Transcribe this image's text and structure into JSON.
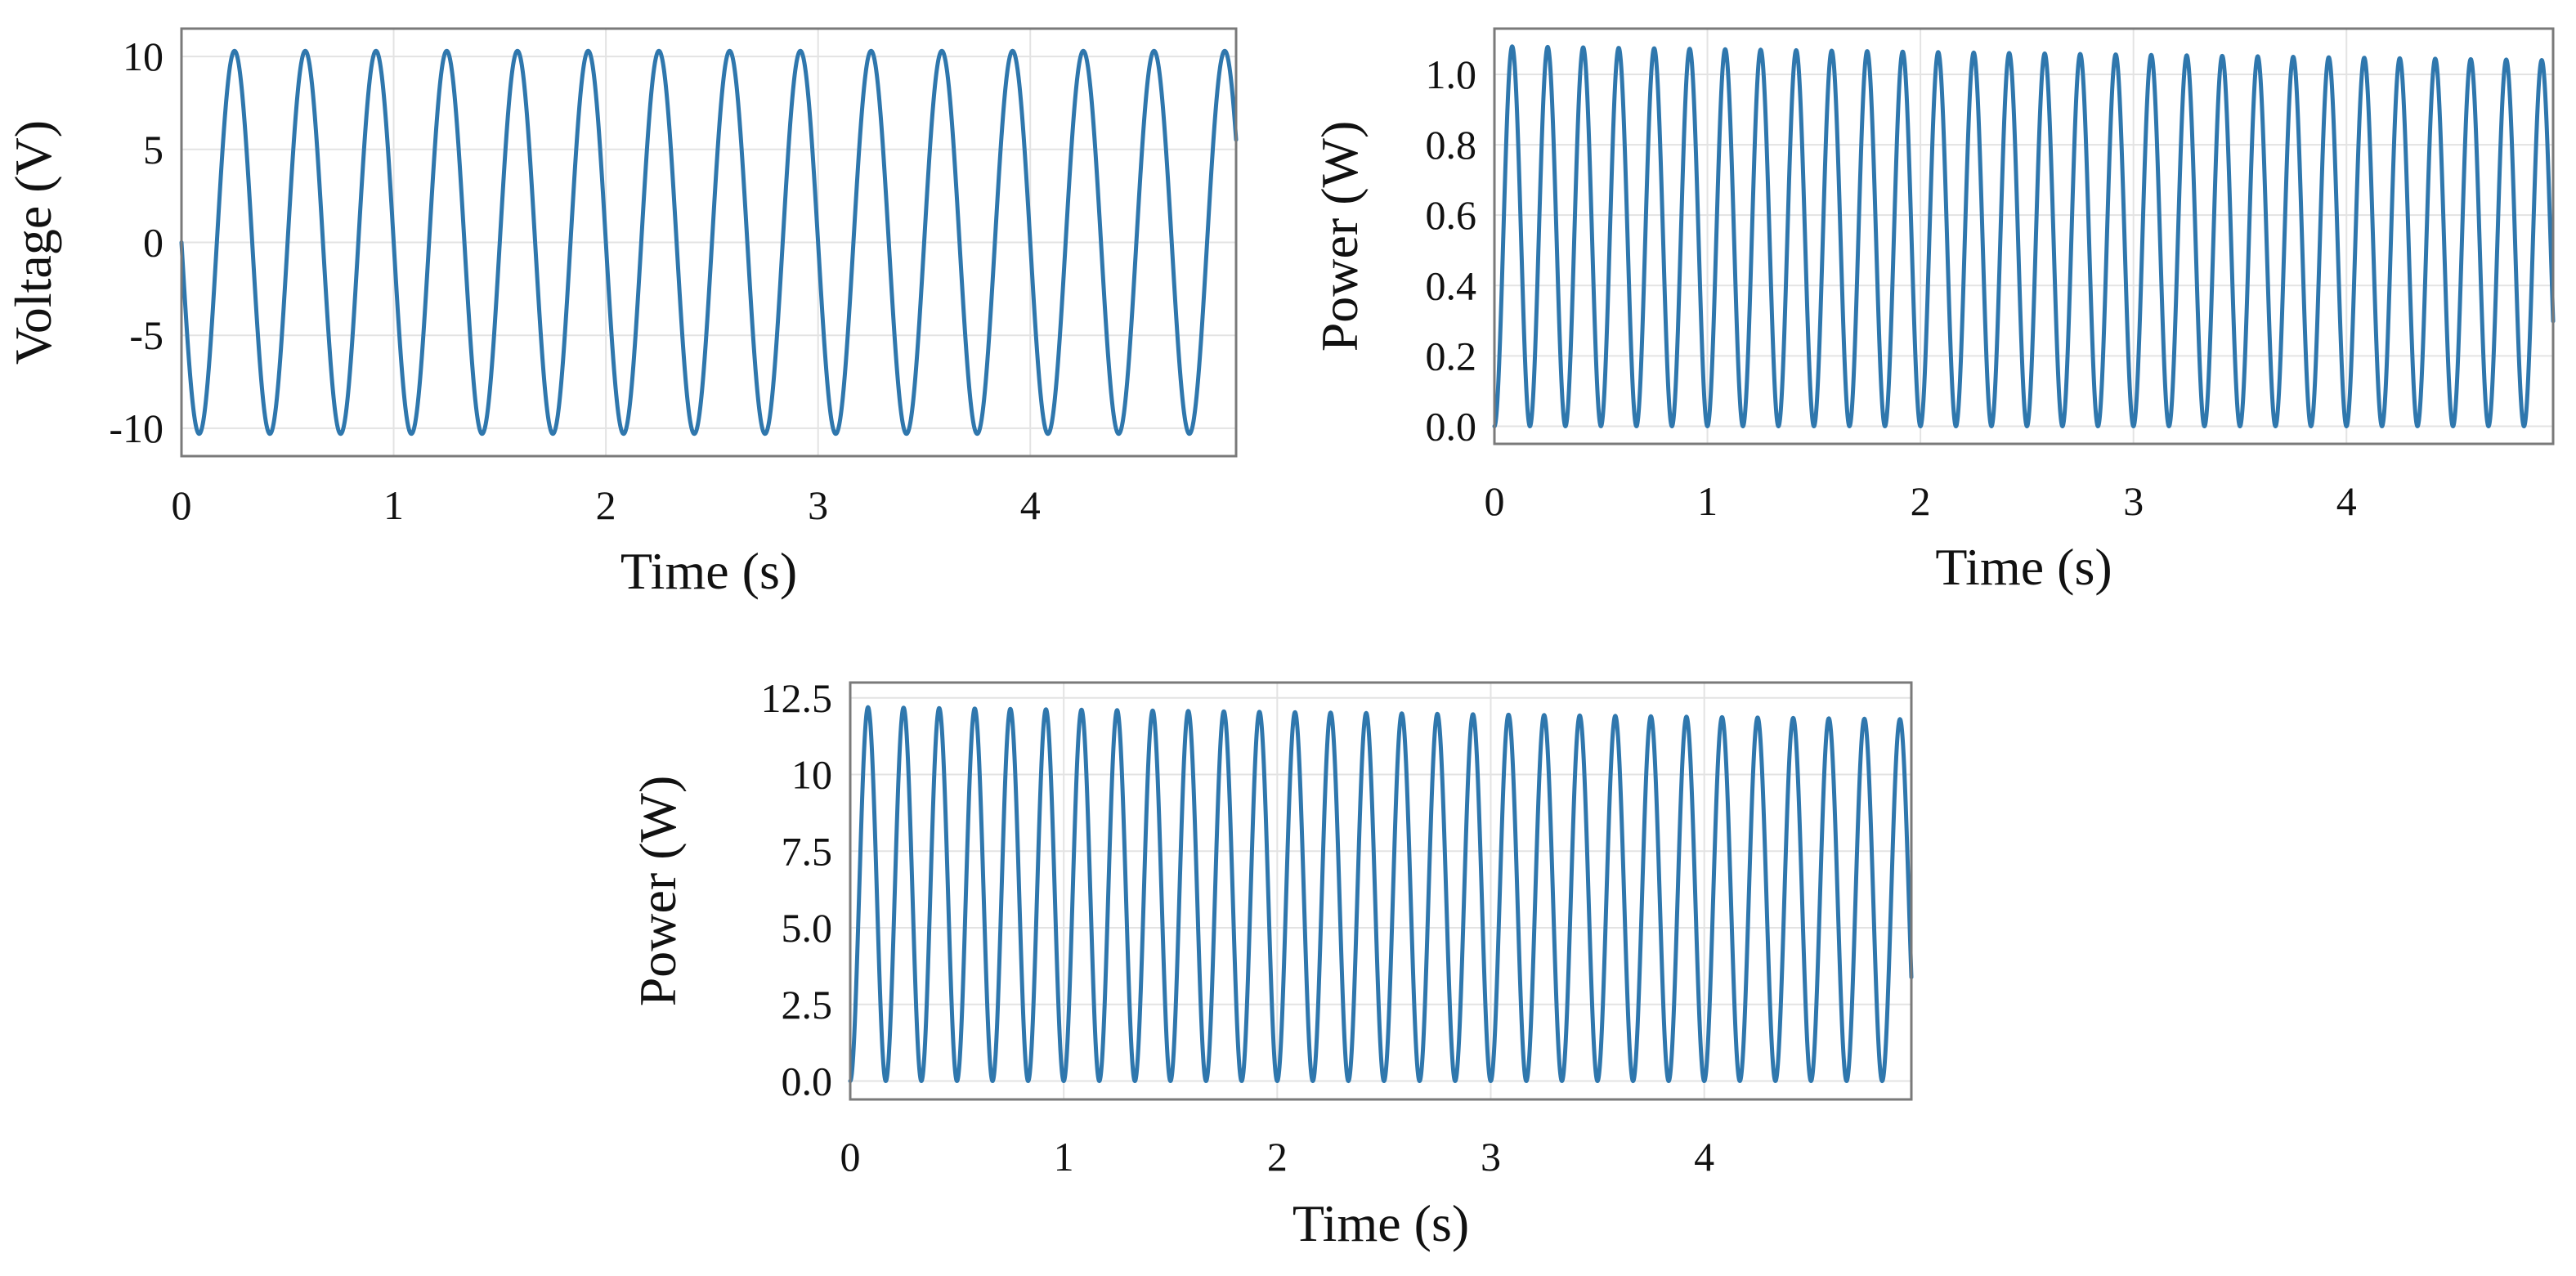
{
  "figure": {
    "description_none": ""
  },
  "colors": {
    "series": "#2f77ad",
    "frame": "#7a7a7a",
    "grid": "#e3e3e3",
    "text": "#111111"
  },
  "chart_data": [
    {
      "id": "voltage",
      "type": "line",
      "title": "",
      "xlabel": "Time (s)",
      "ylabel": "Voltage (V)",
      "xlim": [
        0,
        4.97
      ],
      "ylim": [
        -11.5,
        11.5
      ],
      "xticks": [
        0,
        1,
        2,
        3,
        4
      ],
      "xtick_labels": [
        "0",
        "1",
        "2",
        "3",
        "4"
      ],
      "yticks": [
        10,
        5,
        0,
        -5,
        -10
      ],
      "ytick_labels": [
        "10",
        "5",
        "0",
        "-5",
        "-10"
      ],
      "grid": true,
      "series": [
        {
          "name": "Voltage",
          "function": "sine",
          "amplitude": 10.3,
          "frequency_hz": 3.0,
          "phase_rad": 3.14159,
          "offset": 0
        }
      ]
    },
    {
      "id": "power_1",
      "type": "line",
      "title": "",
      "xlabel": "Time (s)",
      "ylabel": "Power (W)",
      "xlim": [
        0,
        4.97
      ],
      "ylim": [
        -0.05,
        1.13
      ],
      "xticks": [
        0,
        1,
        2,
        3,
        4
      ],
      "xtick_labels": [
        "0",
        "1",
        "2",
        "3",
        "4"
      ],
      "yticks": [
        1.0,
        0.8,
        0.6,
        0.4,
        0.2,
        0.0
      ],
      "ytick_labels": [
        "1.0",
        "0.8",
        "0.6",
        "0.4",
        "0.2",
        "0.0"
      ],
      "grid": true,
      "series": [
        {
          "name": "Power",
          "function": "sine_squared",
          "amplitude_start": 1.08,
          "amplitude_end": 1.04,
          "frequency_hz": 3.0,
          "phase_rad": 0
        }
      ]
    },
    {
      "id": "power_2",
      "type": "line",
      "title": "",
      "xlabel": "Time (s)",
      "ylabel": "Power (W)",
      "xlim": [
        0,
        4.97
      ],
      "ylim": [
        -0.6,
        13.0
      ],
      "xticks": [
        0,
        1,
        2,
        3,
        4
      ],
      "xtick_labels": [
        "0",
        "1",
        "2",
        "3",
        "4"
      ],
      "yticks": [
        12.5,
        10,
        7.5,
        5.0,
        2.5,
        0.0
      ],
      "ytick_labels": [
        "12.5",
        "10",
        "7.5",
        "5.0",
        "2.5",
        "0.0"
      ],
      "grid": true,
      "series": [
        {
          "name": "Power",
          "function": "sine_squared",
          "amplitude_start": 12.2,
          "amplitude_end": 11.8,
          "frequency_hz": 3.0,
          "phase_rad": 0
        }
      ]
    }
  ]
}
